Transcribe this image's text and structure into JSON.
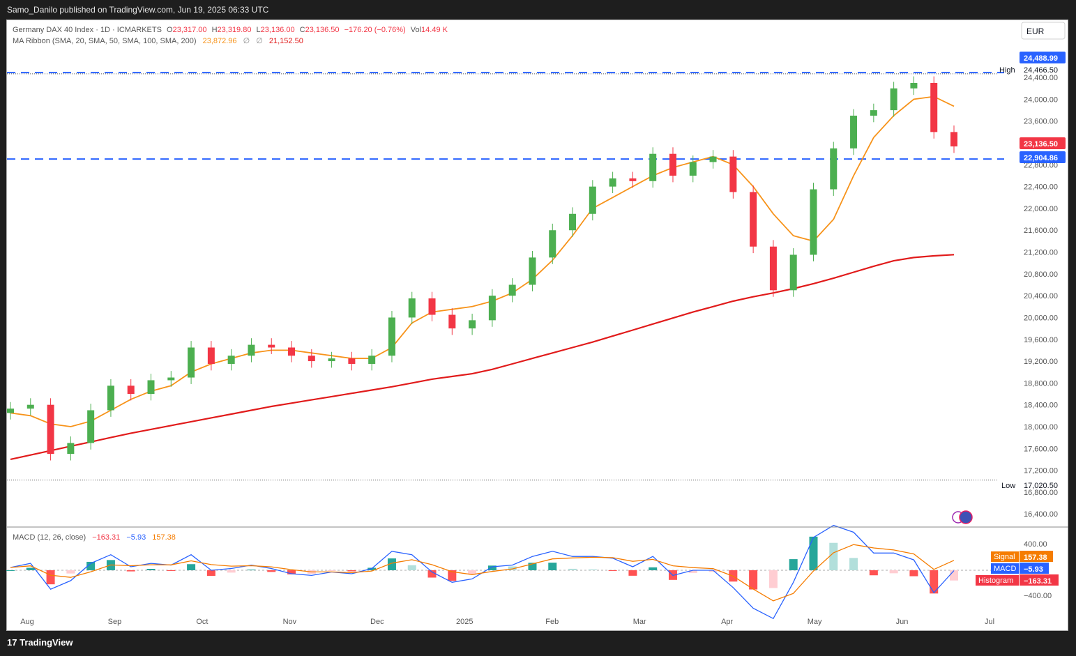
{
  "header": {
    "publisher": "Samo_Danilo published on TradingView.com, Jun 19, 2025 06:33 UTC"
  },
  "footer": {
    "brand": "TradingView",
    "logo_text": "17"
  },
  "legend": {
    "symbol": "Germany DAX 40 Index · 1D · ICMARKETS",
    "open_label": "O",
    "open": "23,317.00",
    "high_label": "H",
    "high": "23,319.80",
    "low_label": "L",
    "low": "23,136.00",
    "close_label": "C",
    "close": "23,136.50",
    "change": "−176.20 (−0.76%)",
    "vol_label": "Vol",
    "vol": "14.49 K",
    "ma_title": "MA Ribbon (SMA, 20, SMA, 50, SMA, 100, SMA, 200)",
    "ma_20": "23,872.96",
    "ma_sym1": "∅",
    "ma_sym2": "∅",
    "ma_200": "21,152.50"
  },
  "currency": "EUR",
  "price_axis": {
    "ticks": [
      "24,400.00",
      "24,000.00",
      "23,600.00",
      "23,200.00",
      "22,800.00",
      "22,400.00",
      "22,000.00",
      "21,600.00",
      "21,200.00",
      "20,800.00",
      "20,400.00",
      "20,000.00",
      "19,600.00",
      "19,200.00",
      "18,800.00",
      "18,400.00",
      "18,000.00",
      "17,600.00",
      "17,200.00",
      "16,800.00",
      "16,400.00"
    ],
    "high_label": "High",
    "high_value": "24,466.50",
    "low_label": "Low",
    "low_value": "17,020.50",
    "level_top": "24,488.99",
    "level_bottom": "22,904.86",
    "last_price": "23,136.50"
  },
  "time_axis": {
    "labels": [
      "Aug",
      "Sep",
      "Oct",
      "Nov",
      "Dec",
      "2025",
      "Feb",
      "Mar",
      "Apr",
      "May",
      "Jun",
      "Jul"
    ]
  },
  "macd": {
    "title": "MACD (12, 26, close)",
    "histogram_value": "−163.31",
    "macd_value": "−5.93",
    "signal_value": "157.38",
    "axis_ticks": [
      "400.00",
      "−400.00"
    ],
    "signal_label": "Signal",
    "macd_label": "MACD",
    "histogram_label": "Histogram"
  },
  "colors": {
    "up": "#4caf50",
    "down": "#f23645",
    "ma20": "#f7931a",
    "ma200": "#e11b1b",
    "level": "#2962ff",
    "macd_line": "#2962ff",
    "signal_line": "#f57c00",
    "hist_pos_strong": "#26a69a",
    "hist_pos_weak": "#b2dfdb",
    "hist_neg_strong": "#ff5252",
    "hist_neg_weak": "#ffcdd2"
  },
  "chart_data": {
    "type": "candlestick",
    "title": "Germany DAX 40 Index · 1D · ICMARKETS",
    "ylim": [
      16300,
      24900
    ],
    "x": [
      "2024-07-22",
      "2024-07-29",
      "2024-08-05",
      "2024-08-12",
      "2024-08-19",
      "2024-08-26",
      "2024-09-02",
      "2024-09-09",
      "2024-09-16",
      "2024-09-23",
      "2024-09-30",
      "2024-10-07",
      "2024-10-14",
      "2024-10-21",
      "2024-10-28",
      "2024-11-04",
      "2024-11-11",
      "2024-11-18",
      "2024-11-25",
      "2024-12-02",
      "2024-12-09",
      "2024-12-16",
      "2024-12-23",
      "2024-12-30",
      "2025-01-06",
      "2025-01-13",
      "2025-01-20",
      "2025-01-27",
      "2025-02-03",
      "2025-02-10",
      "2025-02-17",
      "2025-02-24",
      "2025-03-03",
      "2025-03-10",
      "2025-03-17",
      "2025-03-24",
      "2025-03-31",
      "2025-04-07",
      "2025-04-14",
      "2025-04-21",
      "2025-04-28",
      "2025-05-05",
      "2025-05-12",
      "2025-05-19",
      "2025-05-26",
      "2025-06-02",
      "2025-06-09",
      "2025-06-16"
    ],
    "series": [
      {
        "values": [
          18330,
          18400,
          17500,
          17700,
          18300,
          18750,
          18600,
          18850,
          18900,
          19450,
          19150,
          19300,
          19500,
          19450,
          19300,
          19200,
          19250,
          19150,
          19300,
          20000,
          20350,
          20050,
          19800,
          19950,
          20400,
          20600,
          21100,
          21600,
          21900,
          22400,
          22550,
          22500,
          23000,
          22600,
          22850,
          22950,
          22300,
          21300,
          20500,
          21150,
          22350,
          23100,
          23700,
          23800,
          24200,
          24300,
          23400,
          23136
        ]
      },
      {
        "name": "SMA 20",
        "values": [
          18250,
          18200,
          18050,
          18000,
          18100,
          18300,
          18500,
          18650,
          18750,
          19000,
          19150,
          19250,
          19350,
          19400,
          19400,
          19350,
          19300,
          19250,
          19250,
          19450,
          19900,
          20100,
          20150,
          20200,
          20300,
          20450,
          20700,
          21050,
          21500,
          22000,
          22200,
          22400,
          22600,
          22750,
          22850,
          22950,
          22800,
          22400,
          21900,
          21500,
          21400,
          21800,
          22600,
          23300,
          23700,
          24000,
          24050,
          23872.96
        ]
      },
      {
        "name": "SMA 200",
        "values": [
          17400,
          17480,
          17560,
          17640,
          17720,
          17800,
          17880,
          17950,
          18020,
          18090,
          18160,
          18230,
          18300,
          18370,
          18430,
          18490,
          18550,
          18610,
          18670,
          18730,
          18800,
          18870,
          18920,
          18970,
          19050,
          19150,
          19250,
          19350,
          19450,
          19550,
          19660,
          19770,
          19880,
          19990,
          20100,
          20200,
          20300,
          20380,
          20450,
          20530,
          20620,
          20720,
          20830,
          20940,
          21040,
          21100,
          21130,
          21152.5
        ]
      }
    ],
    "high": 24466.5,
    "low": 17020.5,
    "levels": [
      24488.99,
      22904.86
    ],
    "macd": {
      "macd": -5.93,
      "signal": 157.38,
      "histogram": -163.31
    }
  }
}
